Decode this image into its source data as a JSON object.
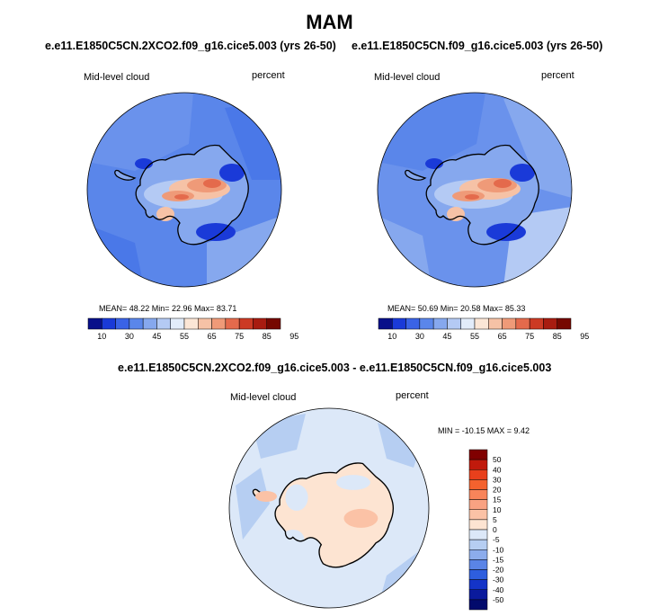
{
  "title": "MAM",
  "panels": [
    {
      "id": "top-left",
      "title": "e.e11.E1850C5CN.2XCO2.f09_g16.cice5.003 (yrs 26-50)",
      "left_label": "Mid-level cloud",
      "right_label": "percent",
      "stats_label": "MEAN=  48.22  Min=  22.96  Max=  83.71",
      "mean": 48.22,
      "min": 22.96,
      "max": 83.71
    },
    {
      "id": "top-right",
      "title": "e.e11.E1850C5CN.f09_g16.cice5.003 (yrs 26-50)",
      "left_label": "Mid-level cloud",
      "right_label": "percent",
      "stats_label": "MEAN=  50.69  Min=  20.58  Max=  85.33",
      "mean": 50.69,
      "min": 20.58,
      "max": 85.33
    },
    {
      "id": "bottom",
      "title": "e.e11.E1850C5CN.2XCO2.f09_g16.cice5.003 - e.e11.E1850C5CN.f09_g16.cice5.003",
      "left_label": "Mid-level cloud",
      "right_label": "percent",
      "stats_label": "MIN = -10.15 MAX =   9.42",
      "min": -10.15,
      "max": 9.42
    }
  ],
  "colorbars": {
    "horizontal": {
      "labels": [
        "10",
        "30",
        "45",
        "55",
        "65",
        "75",
        "85",
        "95"
      ],
      "colors": [
        "#08108a",
        "#1a3ad8",
        "#3a63e6",
        "#5a86ea",
        "#86a8ee",
        "#b4caf4",
        "#e2ecfa",
        "#fbe6d6",
        "#f6c2a6",
        "#ef9a78",
        "#e46a4c",
        "#cc3a24",
        "#a81c10",
        "#760800"
      ]
    },
    "vertical": {
      "labels": [
        "50",
        "40",
        "30",
        "20",
        "15",
        "10",
        "5",
        "0",
        "-5",
        "-10",
        "-15",
        "-20",
        "-30",
        "-40",
        "-50"
      ],
      "colors": [
        "#800000",
        "#c01a0c",
        "#e8401c",
        "#f4622e",
        "#f8845a",
        "#f9a282",
        "#fbc2a6",
        "#fde4d2",
        "#dce8f8",
        "#b6cef2",
        "#8cacec",
        "#5a84e6",
        "#2e5ede",
        "#1434c8",
        "#0a1a9c",
        "#020a6c"
      ]
    }
  },
  "chart_data": [
    {
      "type": "heatmap",
      "title": "e.e11.E1850C5CN.2XCO2.f09_g16.cice5.003 (yrs 26-50)",
      "variable": "Mid-level cloud",
      "units": "percent",
      "season": "MAM",
      "mean": 48.22,
      "min": 22.96,
      "max": 83.71,
      "colorbar_levels": [
        10,
        30,
        45,
        55,
        65,
        75,
        85,
        95
      ]
    },
    {
      "type": "heatmap",
      "title": "e.e11.E1850C5CN.f09_g16.cice5.003 (yrs 26-50)",
      "variable": "Mid-level cloud",
      "units": "percent",
      "season": "MAM",
      "mean": 50.69,
      "min": 20.58,
      "max": 85.33,
      "colorbar_levels": [
        10,
        30,
        45,
        55,
        65,
        75,
        85,
        95
      ]
    },
    {
      "type": "heatmap",
      "title": "e.e11.E1850C5CN.2XCO2.f09_g16.cice5.003 - e.e11.E1850C5CN.f09_g16.cice5.003",
      "variable": "Mid-level cloud",
      "units": "percent",
      "season": "MAM",
      "min": -10.15,
      "max": 9.42,
      "colorbar_levels": [
        -50,
        -40,
        -30,
        -20,
        -15,
        -10,
        -5,
        0,
        5,
        10,
        15,
        20,
        30,
        40,
        50
      ]
    }
  ]
}
